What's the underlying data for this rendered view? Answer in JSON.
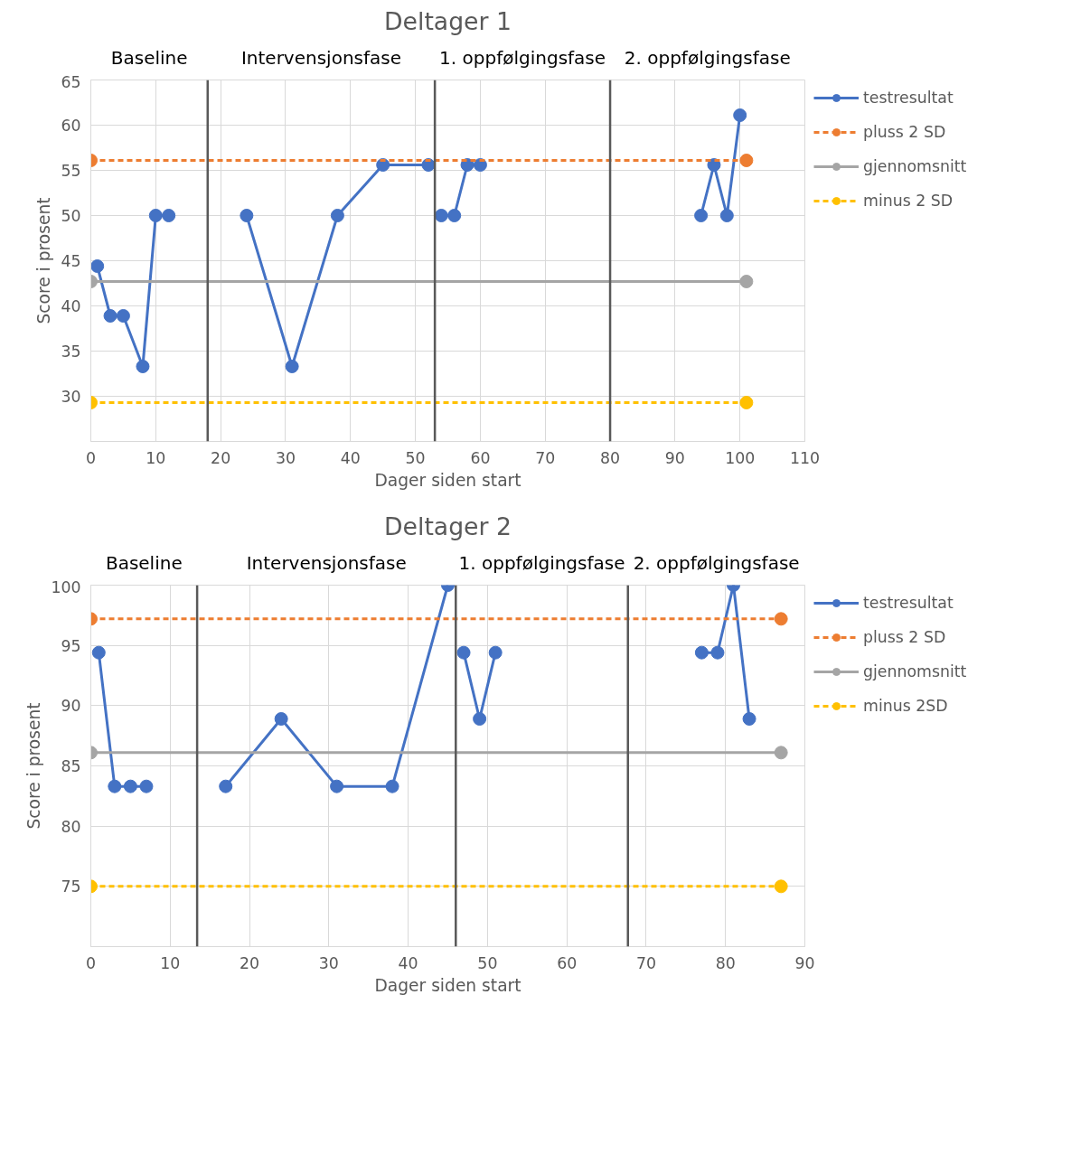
{
  "chart_data": [
    {
      "type": "line",
      "title": "Deltager 1",
      "xlabel": "Dager siden start",
      "ylabel": "Score i prosent",
      "xlim": [
        0,
        110
      ],
      "xticks": [
        0,
        10,
        20,
        30,
        40,
        50,
        60,
        70,
        80,
        90,
        100,
        110
      ],
      "ylim": [
        25,
        65
      ],
      "yticks": [
        30,
        35,
        40,
        45,
        50,
        55,
        60,
        65
      ],
      "grid": true,
      "legend": "right",
      "marker": "circle",
      "annotations": [
        "Baseline",
        "Intervensjonsfase",
        "1. oppfølgingsfase",
        "2. oppfølgingsfase"
      ],
      "ref_lines": [
        {
          "axis": "x",
          "value": 18,
          "color": "#595959"
        },
        {
          "axis": "x",
          "value": 53,
          "color": "#595959"
        },
        {
          "axis": "x",
          "value": 80,
          "color": "#595959"
        }
      ],
      "series": [
        {
          "name": "testresultat",
          "color": "#4472c4",
          "line_style": "solid",
          "x": [
            1,
            3,
            5,
            8,
            10,
            12,
            18,
            24,
            31,
            38,
            45,
            52,
            53,
            54,
            56,
            58,
            60,
            80,
            94,
            96,
            98,
            100
          ],
          "values": [
            44.4,
            38.9,
            38.9,
            33.3,
            50,
            50,
            null,
            50,
            33.3,
            50,
            55.6,
            55.6,
            null,
            50,
            50,
            55.6,
            55.6,
            null,
            50,
            55.6,
            50,
            61.1
          ]
        },
        {
          "name": "pluss 2 SD",
          "color": "#ed7d31",
          "line_style": "dashed",
          "x": [
            0,
            101
          ],
          "values": [
            56.1,
            56.1
          ]
        },
        {
          "name": "gjennomsnitt",
          "color": "#a5a5a5",
          "line_style": "solid",
          "x": [
            0,
            101
          ],
          "values": [
            42.7,
            42.7
          ]
        },
        {
          "name": "minus 2 SD",
          "color": "#ffc000",
          "line_style": "dashed",
          "x": [
            0,
            101
          ],
          "values": [
            29.3,
            29.3
          ]
        }
      ]
    },
    {
      "type": "line",
      "title": "Deltager 2",
      "xlabel": "Dager siden start",
      "ylabel": "Score i prosent",
      "xlim": [
        0,
        90
      ],
      "xticks": [
        0,
        10,
        20,
        30,
        40,
        50,
        60,
        70,
        80,
        90
      ],
      "ylim": [
        70,
        100
      ],
      "yticks": [
        75,
        80,
        85,
        90,
        95,
        100
      ],
      "grid": true,
      "legend": "right",
      "marker": "circle",
      "annotations": [
        "Baseline",
        "Intervensjonsfase",
        "1. oppfølgingsfase",
        "2. oppfølgingsfase"
      ],
      "ref_lines": [
        {
          "axis": "x",
          "value": 13.4,
          "color": "#595959"
        },
        {
          "axis": "x",
          "value": 46,
          "color": "#595959"
        },
        {
          "axis": "x",
          "value": 67.7,
          "color": "#595959"
        }
      ],
      "series": [
        {
          "name": "testresultat",
          "color": "#4472c4",
          "line_style": "solid",
          "x": [
            1,
            3,
            5,
            7,
            13.4,
            17,
            24,
            31,
            38,
            45,
            46,
            47,
            49,
            51,
            67.7,
            77,
            79,
            81,
            83
          ],
          "values": [
            94.4,
            83.3,
            83.3,
            83.3,
            null,
            83.3,
            88.9,
            83.3,
            83.3,
            100,
            null,
            94.4,
            88.9,
            94.4,
            null,
            94.4,
            94.4,
            100,
            88.9
          ]
        },
        {
          "name": "pluss 2 SD",
          "color": "#ed7d31",
          "line_style": "dashed",
          "x": [
            0,
            87
          ],
          "values": [
            97.2,
            97.2
          ]
        },
        {
          "name": "gjennomsnitt",
          "color": "#a5a5a5",
          "line_style": "solid",
          "x": [
            0,
            87
          ],
          "values": [
            86.1,
            86.1
          ]
        },
        {
          "name": "minus 2SD",
          "color": "#ffc000",
          "line_style": "dashed",
          "x": [
            0,
            87
          ],
          "values": [
            75,
            75
          ]
        }
      ]
    }
  ]
}
